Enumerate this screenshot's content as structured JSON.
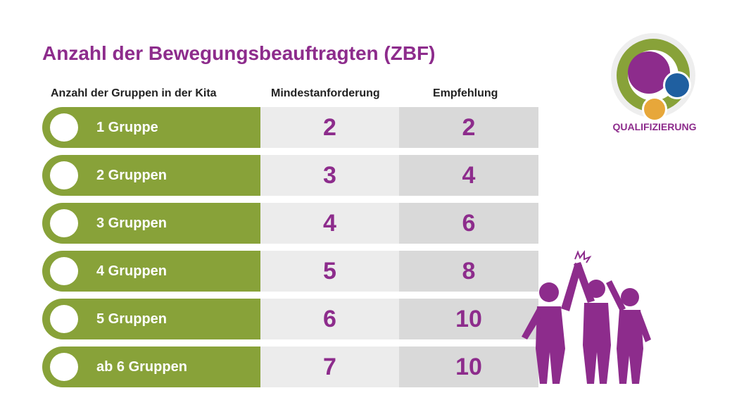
{
  "title": "Anzahl der Bewegungsbeauftragten (ZBF)",
  "headers": {
    "groups": "Anzahl der Gruppen in der Kita",
    "min": "Mindestanforderung",
    "rec": "Empfehlung"
  },
  "rows": [
    {
      "label": "1 Gruppe",
      "min": "2",
      "rec": "2"
    },
    {
      "label": "2 Gruppen",
      "min": "3",
      "rec": "4"
    },
    {
      "label": "3 Gruppen",
      "min": "4",
      "rec": "6"
    },
    {
      "label": "4 Gruppen",
      "min": "5",
      "rec": "8"
    },
    {
      "label": "5 Gruppen",
      "min": "6",
      "rec": "10"
    },
    {
      "label": "ab 6 Gruppen",
      "min": "7",
      "rec": "10"
    }
  ],
  "logo": {
    "text": "QUALIFIZIERUNG"
  },
  "colors": {
    "purple": "#8d2c8c",
    "green": "#88a239"
  }
}
